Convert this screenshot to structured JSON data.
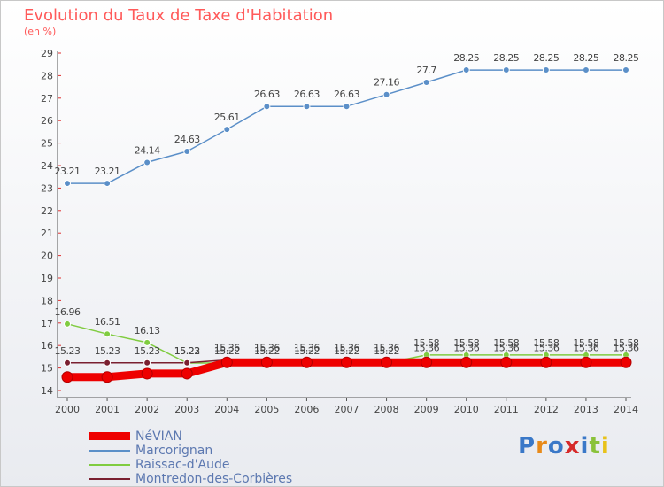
{
  "title": "Evolution du Taux de Taxe d'Habitation",
  "unit_label": "(en %)",
  "logo_text": "Proxiti",
  "colors": {
    "title": "#ff5a5a",
    "axis": "#555555",
    "tick_mark": "#e03030",
    "label": "#444444",
    "legend_text": "#5c78b0"
  },
  "chart_data": {
    "type": "line",
    "title": "Evolution du Taux de Taxe d'Habitation",
    "ylabel": "(en %)",
    "x": [
      2000,
      2001,
      2002,
      2003,
      2004,
      2005,
      2006,
      2007,
      2008,
      2009,
      2010,
      2011,
      2012,
      2013,
      2014
    ],
    "ylim": [
      14,
      29
    ],
    "yticks": [
      14,
      15,
      16,
      17,
      18,
      19,
      20,
      21,
      22,
      23,
      24,
      25,
      26,
      27,
      28,
      29
    ],
    "legend_position": "bottom-left",
    "series": [
      {
        "name": "NéVIAN",
        "color": "#ee0000",
        "line_width": 9,
        "labeled": false,
        "values": [
          14.6,
          14.6,
          14.75,
          14.75,
          15.25,
          15.25,
          15.25,
          15.25,
          15.25,
          15.25,
          15.25,
          15.25,
          15.25,
          15.25,
          15.25
        ]
      },
      {
        "name": "Marcorignan",
        "color": "#5b8fc8",
        "line_width": 1.5,
        "labeled": true,
        "values": [
          23.21,
          23.21,
          24.14,
          24.63,
          25.61,
          26.63,
          26.63,
          26.63,
          27.16,
          27.7,
          28.25,
          28.25,
          28.25,
          28.25,
          28.25
        ]
      },
      {
        "name": "Raissac-d'Aude",
        "color": "#80cc40",
        "line_width": 1.5,
        "labeled": true,
        "values": [
          16.96,
          16.51,
          16.13,
          15.22,
          15.22,
          15.22,
          15.22,
          15.22,
          15.22,
          15.58,
          15.58,
          15.58,
          15.58,
          15.58,
          15.58
        ]
      },
      {
        "name": "Montredon-des-Corbières",
        "color": "#7a2030",
        "line_width": 1.5,
        "labeled": true,
        "values": [
          15.23,
          15.23,
          15.23,
          15.23,
          15.36,
          15.36,
          15.36,
          15.36,
          15.36,
          15.36,
          15.36,
          15.36,
          15.36,
          15.36,
          15.36
        ]
      }
    ],
    "data_labels": [
      {
        "series": "Marcorignan",
        "text": [
          "23.21",
          "23.21",
          "24.14",
          "24.63",
          "25.61",
          "26.63",
          "26.63",
          "26.63",
          "27.16",
          "27.7",
          "28.25",
          "28.25",
          "28.25",
          "28.25",
          "28.25"
        ]
      },
      {
        "series": "Raissac-d'Aude",
        "text": [
          "16.96",
          "16.51",
          "16.13",
          "15.22",
          "15.22",
          "15.22",
          "15.22",
          "15.22",
          "15.22",
          "15.58",
          "15.58",
          "15.58",
          "15.58",
          "15.58",
          "15.58"
        ]
      },
      {
        "series": "Montredon-des-Corbières",
        "text": [
          "15.23",
          "15.23",
          "15.23",
          "15.23",
          "15.36",
          "15.36",
          "15.36",
          "15.36",
          "15.36",
          "15.36",
          "15.36",
          "15.36",
          "15.36",
          "15.36",
          "15.36"
        ]
      }
    ]
  }
}
